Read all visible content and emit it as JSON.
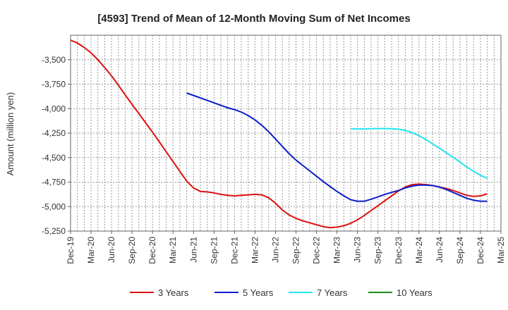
{
  "chart_data": {
    "type": "line",
    "title": "[4593]  Trend of Mean of 12-Month Moving Sum of Net Incomes",
    "xlabel": "",
    "ylabel": "Amount (million yen)",
    "ylim": [
      -5250,
      -3250
    ],
    "yticks": [
      -5250,
      -5000,
      -4750,
      -4500,
      -4250,
      -4000,
      -3750,
      -3500
    ],
    "ytick_labels": [
      "-5,250",
      "-5,000",
      "-4,750",
      "-4,500",
      "-4,250",
      "-4,000",
      "-3,750",
      "-3,500"
    ],
    "xlim": [
      "2019-12",
      "2025-03"
    ],
    "xticks": [
      "2019-12",
      "2020-03",
      "2020-06",
      "2020-09",
      "2020-12",
      "2021-03",
      "2021-06",
      "2021-09",
      "2021-12",
      "2022-03",
      "2022-06",
      "2022-09",
      "2022-12",
      "2023-03",
      "2023-06",
      "2023-09",
      "2023-12",
      "2024-03",
      "2024-06",
      "2024-09",
      "2024-12",
      "2025-03"
    ],
    "xtick_labels": [
      "Dec-19",
      "Mar-20",
      "Jun-20",
      "Sep-20",
      "Dec-20",
      "Mar-21",
      "Jun-21",
      "Sep-21",
      "Dec-21",
      "Mar-22",
      "Jun-22",
      "Sep-22",
      "Dec-22",
      "Mar-23",
      "Jun-23",
      "Sep-23",
      "Dec-23",
      "Mar-24",
      "Jun-24",
      "Sep-24",
      "Dec-24",
      "Mar-25"
    ],
    "grid": true,
    "legend_position": "bottom",
    "series": [
      {
        "name": "3 Years",
        "color": "#dd1111",
        "points": [
          [
            "2019-12",
            -3300
          ],
          [
            "2020-01",
            -3330
          ],
          [
            "2020-02",
            -3375
          ],
          [
            "2020-03",
            -3430
          ],
          [
            "2020-04",
            -3500
          ],
          [
            "2020-05",
            -3580
          ],
          [
            "2020-06",
            -3665
          ],
          [
            "2020-07",
            -3760
          ],
          [
            "2020-08",
            -3860
          ],
          [
            "2020-09",
            -3955
          ],
          [
            "2020-10",
            -4050
          ],
          [
            "2020-11",
            -4145
          ],
          [
            "2020-12",
            -4240
          ],
          [
            "2021-01",
            -4340
          ],
          [
            "2021-02",
            -4440
          ],
          [
            "2021-03",
            -4540
          ],
          [
            "2021-04",
            -4640
          ],
          [
            "2021-05",
            -4740
          ],
          [
            "2021-06",
            -4810
          ],
          [
            "2021-07",
            -4845
          ],
          [
            "2021-08",
            -4850
          ],
          [
            "2021-09",
            -4860
          ],
          [
            "2021-10",
            -4875
          ],
          [
            "2021-11",
            -4885
          ],
          [
            "2021-12",
            -4890
          ],
          [
            "2022-01",
            -4885
          ],
          [
            "2022-02",
            -4880
          ],
          [
            "2022-03",
            -4875
          ],
          [
            "2022-04",
            -4880
          ],
          [
            "2022-05",
            -4910
          ],
          [
            "2022-06",
            -4965
          ],
          [
            "2022-07",
            -5035
          ],
          [
            "2022-08",
            -5085
          ],
          [
            "2022-09",
            -5120
          ],
          [
            "2022-10",
            -5145
          ],
          [
            "2022-11",
            -5165
          ],
          [
            "2022-12",
            -5185
          ],
          [
            "2023-01",
            -5205
          ],
          [
            "2023-02",
            -5215
          ],
          [
            "2023-03",
            -5210
          ],
          [
            "2023-04",
            -5195
          ],
          [
            "2023-05",
            -5170
          ],
          [
            "2023-06",
            -5135
          ],
          [
            "2023-07",
            -5090
          ],
          [
            "2023-08",
            -5040
          ],
          [
            "2023-09",
            -4990
          ],
          [
            "2023-10",
            -4940
          ],
          [
            "2023-11",
            -4890
          ],
          [
            "2023-12",
            -4840
          ],
          [
            "2024-01",
            -4800
          ],
          [
            "2024-02",
            -4775
          ],
          [
            "2024-03",
            -4770
          ],
          [
            "2024-04",
            -4775
          ],
          [
            "2024-05",
            -4785
          ],
          [
            "2024-06",
            -4800
          ],
          [
            "2024-07",
            -4815
          ],
          [
            "2024-08",
            -4835
          ],
          [
            "2024-09",
            -4860
          ],
          [
            "2024-10",
            -4885
          ],
          [
            "2024-11",
            -4895
          ],
          [
            "2024-12",
            -4890
          ],
          [
            "2025-01",
            -4870
          ]
        ]
      },
      {
        "name": "5 Years",
        "color": "#0a1ec8",
        "points": [
          [
            "2021-05",
            -3840
          ],
          [
            "2021-06",
            -3865
          ],
          [
            "2021-07",
            -3890
          ],
          [
            "2021-08",
            -3915
          ],
          [
            "2021-09",
            -3940
          ],
          [
            "2021-10",
            -3965
          ],
          [
            "2021-11",
            -3990
          ],
          [
            "2021-12",
            -4010
          ],
          [
            "2022-01",
            -4035
          ],
          [
            "2022-02",
            -4070
          ],
          [
            "2022-03",
            -4115
          ],
          [
            "2022-04",
            -4170
          ],
          [
            "2022-05",
            -4235
          ],
          [
            "2022-06",
            -4310
          ],
          [
            "2022-07",
            -4385
          ],
          [
            "2022-08",
            -4460
          ],
          [
            "2022-09",
            -4525
          ],
          [
            "2022-10",
            -4580
          ],
          [
            "2022-11",
            -4635
          ],
          [
            "2022-12",
            -4690
          ],
          [
            "2023-01",
            -4745
          ],
          [
            "2023-02",
            -4795
          ],
          [
            "2023-03",
            -4845
          ],
          [
            "2023-04",
            -4890
          ],
          [
            "2023-05",
            -4930
          ],
          [
            "2023-06",
            -4945
          ],
          [
            "2023-07",
            -4945
          ],
          [
            "2023-08",
            -4925
          ],
          [
            "2023-09",
            -4900
          ],
          [
            "2023-10",
            -4875
          ],
          [
            "2023-11",
            -4855
          ],
          [
            "2023-12",
            -4835
          ],
          [
            "2024-01",
            -4810
          ],
          [
            "2024-02",
            -4790
          ],
          [
            "2024-03",
            -4780
          ],
          [
            "2024-04",
            -4780
          ],
          [
            "2024-05",
            -4785
          ],
          [
            "2024-06",
            -4800
          ],
          [
            "2024-07",
            -4825
          ],
          [
            "2024-08",
            -4855
          ],
          [
            "2024-09",
            -4885
          ],
          [
            "2024-10",
            -4915
          ],
          [
            "2024-11",
            -4935
          ],
          [
            "2024-12",
            -4945
          ],
          [
            "2025-01",
            -4945
          ]
        ]
      },
      {
        "name": "7 Years",
        "color": "#22e5ee",
        "points": [
          [
            "2023-05",
            -4205
          ],
          [
            "2023-06",
            -4207
          ],
          [
            "2023-07",
            -4207
          ],
          [
            "2023-08",
            -4205
          ],
          [
            "2023-09",
            -4203
          ],
          [
            "2023-10",
            -4203
          ],
          [
            "2023-11",
            -4205
          ],
          [
            "2023-12",
            -4210
          ],
          [
            "2024-01",
            -4222
          ],
          [
            "2024-02",
            -4245
          ],
          [
            "2024-03",
            -4275
          ],
          [
            "2024-04",
            -4315
          ],
          [
            "2024-05",
            -4360
          ],
          [
            "2024-06",
            -4405
          ],
          [
            "2024-07",
            -4450
          ],
          [
            "2024-08",
            -4495
          ],
          [
            "2024-09",
            -4545
          ],
          [
            "2024-10",
            -4595
          ],
          [
            "2024-11",
            -4640
          ],
          [
            "2024-12",
            -4680
          ],
          [
            "2025-01",
            -4710
          ]
        ]
      },
      {
        "name": "10 Years",
        "color": "#1a8c1a",
        "points": []
      }
    ]
  }
}
